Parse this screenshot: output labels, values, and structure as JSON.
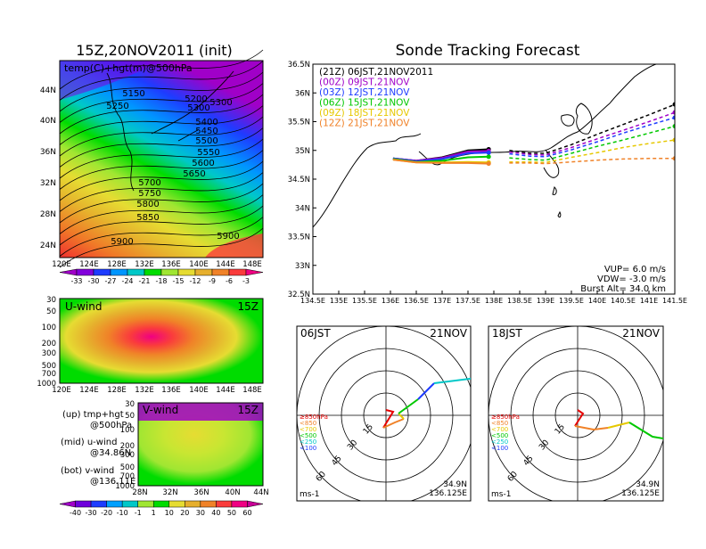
{
  "left_title": "15Z,20NOV2011 (init)",
  "right_title": "Sonde Tracking Forecast",
  "map_panel": {
    "field_label": "temp(C)+hgt(m)@500hPa",
    "lat_labels": [
      "44N",
      "40N",
      "36N",
      "32N",
      "28N",
      "24N"
    ],
    "lon_labels": [
      "120E",
      "124E",
      "128E",
      "132E",
      "136E",
      "140E",
      "144E",
      "148E"
    ],
    "contour_labels": [
      "5150",
      "5200",
      "5250",
      "5300",
      "5300",
      "5400",
      "5450",
      "5500",
      "5550",
      "5600",
      "5650",
      "5700",
      "5750",
      "5800",
      "5850",
      "5900",
      "5900"
    ],
    "colorbar_labels": [
      "-33",
      "-30",
      "-27",
      "-24",
      "-21",
      "-18",
      "-15",
      "-12",
      "-9",
      "-6",
      "-3"
    ],
    "colorbar_colors": [
      "#a000c8",
      "#8200dc",
      "#1e3cff",
      "#0096ff",
      "#00c8c8",
      "#00dc00",
      "#a0e632",
      "#e6dc32",
      "#e6af2d",
      "#f08228",
      "#fa3c3c",
      "#f00082"
    ]
  },
  "uwind_panel": {
    "label": "U-wind",
    "time": "15Z",
    "p_labels": [
      "30",
      "50",
      "100",
      "200",
      "300",
      "500",
      "700",
      "1000"
    ],
    "lon_labels": [
      "120E",
      "124E",
      "128E",
      "132E",
      "136E",
      "140E",
      "144E",
      "148E"
    ]
  },
  "vwind_panel": {
    "label": "V-wind",
    "time": "15Z",
    "p_labels": [
      "30",
      "50",
      "100",
      "200",
      "300",
      "500",
      "700",
      "1000"
    ],
    "lat_labels": [
      "28N",
      "32N",
      "36N",
      "40N",
      "44N"
    ]
  },
  "notes": {
    "up1": "(up) tmp+hgt",
    "up2": "@500hPa",
    "mid1": "(mid) u-wind",
    "mid2": "@34.86N",
    "bot1": "(bot) v-wind",
    "bot2": "@136.11E"
  },
  "wind_colorbar": {
    "labels": [
      "-40",
      "-30",
      "-20",
      "-10",
      "-1",
      "1",
      "10",
      "20",
      "30",
      "40",
      "50",
      "60"
    ],
    "colors": [
      "#a000c8",
      "#6e00dc",
      "#1e3cff",
      "#00a0ff",
      "#00c8c8",
      "#a0e632",
      "#00dc00",
      "#e6dc32",
      "#e6af2d",
      "#f08228",
      "#fa3c3c",
      "#f00082",
      "#c80096"
    ]
  },
  "track_panel": {
    "lat_labels": [
      "36.5N",
      "36N",
      "35.5N",
      "35N",
      "34.5N",
      "34N",
      "33.5N",
      "33N",
      "32.5N"
    ],
    "lon_labels": [
      "134.5E",
      "135E",
      "135.5E",
      "136E",
      "136.5E",
      "137E",
      "137.5E",
      "138E",
      "138.5E",
      "139E",
      "139.5E",
      "140E",
      "140.5E",
      "141E",
      "141.5E"
    ],
    "legend": [
      {
        "text": "(21Z)  06JST,21NOV2011",
        "color": "#000000"
      },
      {
        "text": "(00Z)  09JST,21NOV",
        "color": "#a000c8"
      },
      {
        "text": "(03Z)  12JST,21NOV",
        "color": "#1e3cff"
      },
      {
        "text": "(06Z)  15JST,21NOV",
        "color": "#00c800"
      },
      {
        "text": "(09Z)  18JST,21NOV",
        "color": "#e6c800"
      },
      {
        "text": "(12Z)  21JST,21NOV",
        "color": "#f08228"
      }
    ],
    "params": [
      "VUP=  6.0  m/s",
      "VDW= -3.0  m/s",
      "Burst Alt=  34.0  km"
    ]
  },
  "hodographs": [
    {
      "jst": "06JST",
      "date": "21NOV",
      "rings": [
        "15",
        "30",
        "45",
        "60"
      ],
      "unit": "ms-1",
      "lat": "34.9N",
      "lon": "136.125E"
    },
    {
      "jst": "18JST",
      "date": "21NOV",
      "rings": [
        "15",
        "30",
        "45",
        "60"
      ],
      "unit": "ms-1",
      "lat": "34.9N",
      "lon": "136.125E"
    }
  ],
  "hodo_legend": [
    {
      "text": "≥850hPa",
      "color": "#e60000"
    },
    {
      "text": "<850",
      "color": "#f08228"
    },
    {
      "text": "<700",
      "color": "#e6c800"
    },
    {
      "text": "<500",
      "color": "#00c800"
    },
    {
      "text": "<250",
      "color": "#00c8c8"
    },
    {
      "text": "<100",
      "color": "#1e3cff"
    }
  ],
  "chart_data": [
    {
      "type": "line",
      "title": "Sonde Tracking Forecast",
      "xlim": [
        134.5,
        141.5
      ],
      "ylim": [
        32.5,
        36.5
      ],
      "series": [
        {
          "name": "(21Z)  06JST,21NOV2011",
          "color": "#000000",
          "x": [
            136.05,
            136.5,
            137.0,
            137.5,
            137.9,
            138.3,
            138.7,
            139.0,
            139.5,
            140.0,
            140.5,
            141.0,
            141.5
          ],
          "y": [
            34.86,
            34.82,
            34.88,
            35.0,
            35.02,
            35.0,
            34.95,
            34.95,
            35.1,
            35.28,
            35.45,
            35.62,
            35.8
          ]
        },
        {
          "name": "(00Z)  09JST,21NOV",
          "color": "#a000c8",
          "x": [
            136.05,
            136.5,
            137.0,
            137.5,
            137.9,
            138.3,
            138.7,
            139.0,
            139.5,
            140.0,
            140.5,
            141.0,
            141.5
          ],
          "y": [
            34.86,
            34.82,
            34.87,
            34.98,
            34.99,
            34.97,
            34.93,
            34.92,
            35.05,
            35.2,
            35.35,
            35.5,
            35.66
          ]
        },
        {
          "name": "(03Z)  12JST,21NOV",
          "color": "#1e3cff",
          "x": [
            136.05,
            136.5,
            137.0,
            137.5,
            137.9,
            138.3,
            138.7,
            139.0,
            139.5,
            140.0,
            140.5,
            141.0,
            141.5
          ],
          "y": [
            34.86,
            34.81,
            34.85,
            34.95,
            34.96,
            34.94,
            34.9,
            34.89,
            35.01,
            35.15,
            35.3,
            35.44,
            35.57
          ]
        },
        {
          "name": "(06Z)  15JST,21NOV",
          "color": "#00c800",
          "x": [
            136.05,
            136.5,
            137.0,
            137.5,
            137.9,
            138.3,
            138.7,
            139.0,
            139.5,
            140.0,
            140.5,
            141.0,
            141.5
          ],
          "y": [
            34.85,
            34.8,
            34.82,
            34.88,
            34.89,
            34.87,
            34.84,
            34.83,
            34.95,
            35.07,
            35.18,
            35.3,
            35.42
          ]
        },
        {
          "name": "(09Z)  18JST,21NOV",
          "color": "#e6c800",
          "x": [
            136.05,
            136.5,
            137.0,
            137.5,
            137.9,
            138.3,
            138.7,
            139.0,
            139.5,
            140.0,
            140.5,
            141.0,
            141.5
          ],
          "y": [
            34.84,
            34.79,
            34.79,
            34.8,
            34.79,
            34.8,
            34.8,
            34.79,
            34.88,
            34.96,
            35.05,
            35.12,
            35.18
          ]
        },
        {
          "name": "(12Z)  21JST,21NOV",
          "color": "#f08228",
          "x": [
            136.05,
            136.5,
            137.0,
            137.5,
            137.9,
            138.3,
            138.7,
            139.0,
            139.5,
            140.0,
            140.5,
            141.0,
            141.5
          ],
          "y": [
            34.84,
            34.79,
            34.78,
            34.78,
            34.77,
            34.78,
            34.78,
            34.77,
            34.8,
            34.83,
            34.85,
            34.86,
            34.86
          ]
        }
      ]
    }
  ]
}
